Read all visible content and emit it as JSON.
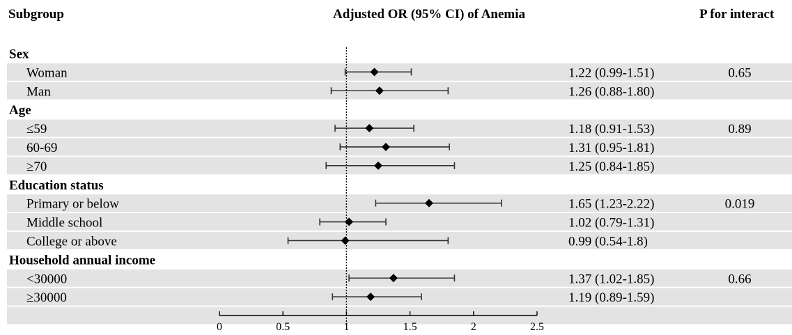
{
  "headers": {
    "subgroup": "Subgroup",
    "title": "Adjusted OR (95% CI) of Anemia",
    "p_interaction": "P for interact"
  },
  "chart_data": {
    "type": "forest",
    "title": "Adjusted OR (95% CI) of Anemia",
    "xlim": [
      0,
      2.5
    ],
    "xticks": [
      0,
      0.5,
      1,
      1.5,
      2,
      2.5
    ],
    "xtick_labels": [
      "0",
      "0.5",
      "1",
      "1.5",
      "2",
      "2.5"
    ],
    "reference_line": 1,
    "groups": [
      {
        "name": "Sex",
        "rows": [
          {
            "label": "Woman",
            "or": 1.22,
            "lo": 0.99,
            "hi": 1.51,
            "ci_text": "1.22 (0.99-1.51)",
            "p": "0.65"
          },
          {
            "label": "Man",
            "or": 1.26,
            "lo": 0.88,
            "hi": 1.8,
            "ci_text": "1.26 (0.88-1.80)",
            "p": ""
          }
        ]
      },
      {
        "name": "Age",
        "rows": [
          {
            "label": "≤59",
            "or": 1.18,
            "lo": 0.91,
            "hi": 1.53,
            "ci_text": "1.18 (0.91-1.53)",
            "p": "0.89"
          },
          {
            "label": "60-69",
            "or": 1.31,
            "lo": 0.95,
            "hi": 1.81,
            "ci_text": "1.31 (0.95-1.81)",
            "p": ""
          },
          {
            "label": "≥70",
            "or": 1.25,
            "lo": 0.84,
            "hi": 1.85,
            "ci_text": "1.25 (0.84-1.85)",
            "p": ""
          }
        ]
      },
      {
        "name": "Education status",
        "rows": [
          {
            "label": "Primary or below",
            "or": 1.65,
            "lo": 1.23,
            "hi": 2.22,
            "ci_text": "1.65 (1.23-2.22)",
            "p": "0.019"
          },
          {
            "label": "Middle school",
            "or": 1.02,
            "lo": 0.79,
            "hi": 1.31,
            "ci_text": "1.02 (0.79-1.31)",
            "p": ""
          },
          {
            "label": "College or above",
            "or": 0.99,
            "lo": 0.54,
            "hi": 1.8,
            "ci_text": "0.99 (0.54-1.8)",
            "p": ""
          }
        ]
      },
      {
        "name": "Household annual income",
        "rows": [
          {
            "label": "<30000",
            "or": 1.37,
            "lo": 1.02,
            "hi": 1.85,
            "ci_text": "1.37 (1.02-1.85)",
            "p": "0.66"
          },
          {
            "label": "≥30000",
            "or": 1.19,
            "lo": 0.89,
            "hi": 1.59,
            "ci_text": "1.19 (0.89-1.59)",
            "p": ""
          }
        ]
      }
    ],
    "colors": {
      "band": "#e3e3e3",
      "marker": "#000000",
      "ci_line": "#333333"
    }
  }
}
